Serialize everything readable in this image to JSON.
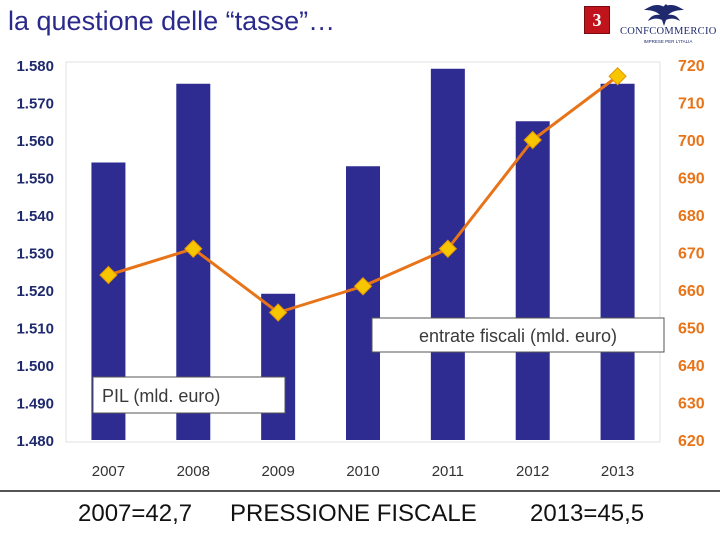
{
  "slide": {
    "title": "la questione delle “tasse”…",
    "badge": "3",
    "logo_name": "CONFCOMMERCIO",
    "logo_tagline": "IMPRESE PER L'ITALIA"
  },
  "footer": {
    "left": "2007=42,7",
    "center": "PRESSIONE FISCALE",
    "right": "2013=45,5"
  },
  "colors": {
    "bars": "#2e2c91",
    "line": "#e8741a",
    "marker": "#f7c600",
    "axis_text": "#1f2a6e",
    "right_axis_text": "#e8741a"
  },
  "chart_data": {
    "type": "bar",
    "categories": [
      "2007",
      "2008",
      "2009",
      "2010",
      "2011",
      "2012",
      "2013"
    ],
    "series": [
      {
        "name": "PIL (mld. euro)",
        "type": "bar",
        "axis": "left",
        "values": [
          1554,
          1575,
          1519,
          1553,
          1579,
          1565,
          1575
        ]
      },
      {
        "name": "entrate fiscali (mld. euro)",
        "type": "line",
        "axis": "right",
        "values": [
          664,
          671,
          654,
          661,
          671,
          700,
          717
        ]
      }
    ],
    "y_left": {
      "min": 1480,
      "max": 1580,
      "step": 10,
      "tick_labels": [
        "1.480",
        "1.490",
        "1.500",
        "1.510",
        "1.520",
        "1.530",
        "1.540",
        "1.550",
        "1.560",
        "1.570",
        "1.580"
      ]
    },
    "y_right": {
      "min": 620,
      "max": 720,
      "step": 10,
      "tick_labels": [
        "620",
        "630",
        "640",
        "650",
        "660",
        "670",
        "680",
        "690",
        "700",
        "710",
        "720"
      ]
    },
    "grid": false
  }
}
